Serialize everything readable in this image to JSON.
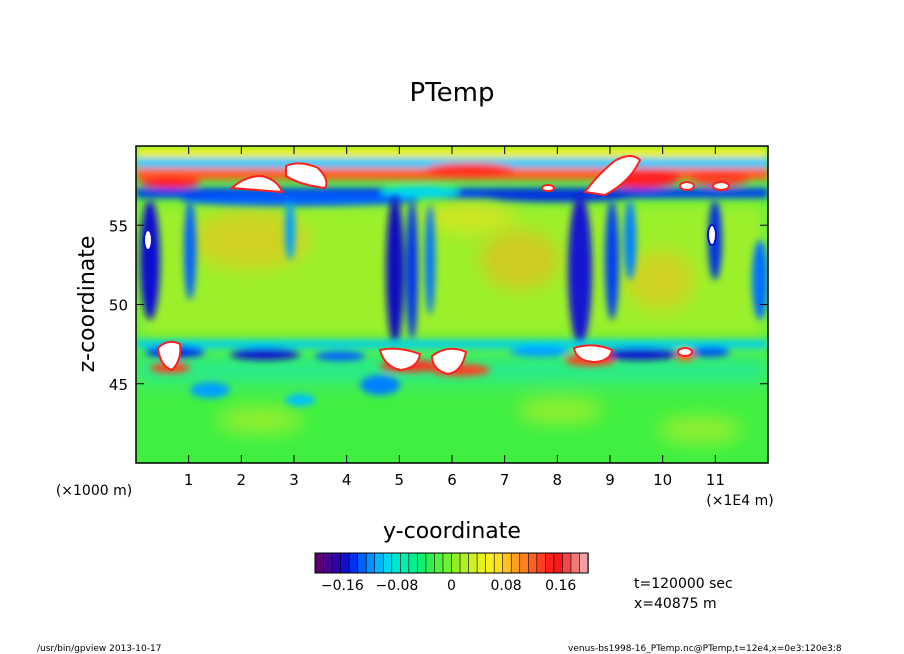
{
  "chart_data": {
    "type": "heatmap",
    "title": "PTemp",
    "xlabel": "y-coordinate",
    "ylabel": "z-coordinate",
    "x_unit": "(×1E4 m)",
    "y_unit": "(×1000 m)",
    "xlim": [
      0,
      12
    ],
    "ylim": [
      40,
      60
    ],
    "x_ticks": [
      1,
      2,
      3,
      4,
      5,
      6,
      7,
      8,
      9,
      10,
      11
    ],
    "y_ticks": [
      45,
      50,
      55
    ],
    "colorbar": {
      "range": [
        -0.2,
        0.2
      ],
      "ticks": [
        -0.16,
        -0.08,
        0,
        0.08,
        0.16
      ],
      "tick_labels": [
        "−0.16",
        "−0.08",
        "0",
        "0.08",
        "0.16"
      ],
      "colors": [
        "#5a0070",
        "#4a0090",
        "#3000b0",
        "#1010d0",
        "#0030f0",
        "#0060ff",
        "#0090ff",
        "#00b8ff",
        "#00d8f0",
        "#00e8d0",
        "#00f0b0",
        "#00f090",
        "#10f070",
        "#30f050",
        "#50f040",
        "#70f030",
        "#90f020",
        "#b0f020",
        "#d0f020",
        "#e8f020",
        "#f8f020",
        "#ffe020",
        "#ffc020",
        "#ffa020",
        "#ff8020",
        "#ff6020",
        "#ff4020",
        "#ff2020",
        "#f81818",
        "#f04848",
        "#f07878",
        "#f0a0a0"
      ]
    }
  },
  "annotations": {
    "time": "t=120000 sec",
    "position": "x=40875 m"
  },
  "footer": {
    "left": "/usr/bin/gpview   2013-10-17",
    "right": "venus-bs1998-16_PTemp.nc@PTemp,t=12e4,x=0e3:120e3:8"
  }
}
